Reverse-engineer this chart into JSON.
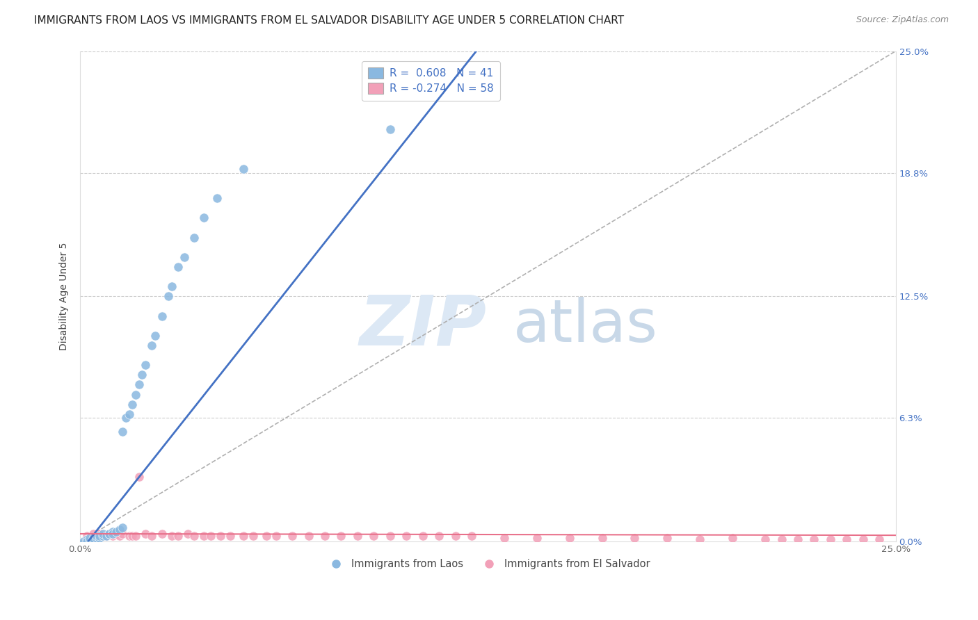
{
  "title": "IMMIGRANTS FROM LAOS VS IMMIGRANTS FROM EL SALVADOR DISABILITY AGE UNDER 5 CORRELATION CHART",
  "source": "Source: ZipAtlas.com",
  "ylabel": "Disability Age Under 5",
  "xlim": [
    0.0,
    0.25
  ],
  "ylim": [
    0.0,
    0.25
  ],
  "ytick_vals": [
    0.0,
    0.063,
    0.125,
    0.188,
    0.25
  ],
  "ytick_labels": [
    "0.0%",
    "6.3%",
    "12.5%",
    "18.8%",
    "25.0%"
  ],
  "grid_color": "#cccccc",
  "blue_color": "#8ab8e0",
  "pink_color": "#f2a0b8",
  "blue_line_color": "#4472c4",
  "pink_line_color": "#e8708a",
  "diagonal_color": "#b0b0b0",
  "watermark_color": "#dce8f5",
  "legend_R_blue": "R =  0.608",
  "legend_N_blue": "N = 41",
  "legend_R_pink": "R = -0.274",
  "legend_N_pink": "N = 58",
  "label_laos": "Immigrants from Laos",
  "label_salvador": "Immigrants from El Salvador",
  "blue_x": [
    0.001,
    0.002,
    0.002,
    0.003,
    0.003,
    0.004,
    0.004,
    0.005,
    0.005,
    0.006,
    0.006,
    0.007,
    0.007,
    0.008,
    0.009,
    0.009,
    0.01,
    0.01,
    0.011,
    0.012,
    0.013,
    0.013,
    0.014,
    0.015,
    0.016,
    0.017,
    0.018,
    0.019,
    0.02,
    0.022,
    0.023,
    0.025,
    0.027,
    0.028,
    0.03,
    0.032,
    0.035,
    0.038,
    0.042,
    0.05,
    0.095
  ],
  "blue_y": [
    0.0,
    0.001,
    0.0,
    0.001,
    0.002,
    0.001,
    0.002,
    0.002,
    0.003,
    0.002,
    0.003,
    0.003,
    0.004,
    0.003,
    0.004,
    0.004,
    0.005,
    0.004,
    0.005,
    0.006,
    0.007,
    0.056,
    0.063,
    0.065,
    0.07,
    0.075,
    0.08,
    0.085,
    0.09,
    0.1,
    0.105,
    0.115,
    0.125,
    0.13,
    0.14,
    0.145,
    0.155,
    0.165,
    0.175,
    0.19,
    0.21
  ],
  "pink_x": [
    0.002,
    0.004,
    0.005,
    0.006,
    0.007,
    0.008,
    0.009,
    0.01,
    0.011,
    0.012,
    0.013,
    0.015,
    0.016,
    0.017,
    0.018,
    0.02,
    0.022,
    0.025,
    0.028,
    0.03,
    0.033,
    0.035,
    0.038,
    0.04,
    0.043,
    0.046,
    0.05,
    0.053,
    0.057,
    0.06,
    0.065,
    0.07,
    0.075,
    0.08,
    0.085,
    0.09,
    0.095,
    0.1,
    0.105,
    0.11,
    0.115,
    0.12,
    0.13,
    0.14,
    0.15,
    0.16,
    0.17,
    0.18,
    0.19,
    0.2,
    0.21,
    0.215,
    0.22,
    0.225,
    0.23,
    0.235,
    0.24,
    0.245
  ],
  "pink_y": [
    0.003,
    0.004,
    0.003,
    0.004,
    0.003,
    0.003,
    0.004,
    0.003,
    0.004,
    0.003,
    0.004,
    0.003,
    0.003,
    0.003,
    0.033,
    0.004,
    0.003,
    0.004,
    0.003,
    0.003,
    0.004,
    0.003,
    0.003,
    0.003,
    0.003,
    0.003,
    0.003,
    0.003,
    0.003,
    0.003,
    0.003,
    0.003,
    0.003,
    0.003,
    0.003,
    0.003,
    0.003,
    0.003,
    0.003,
    0.003,
    0.003,
    0.003,
    0.002,
    0.002,
    0.002,
    0.002,
    0.002,
    0.002,
    0.001,
    0.002,
    0.001,
    0.001,
    0.001,
    0.001,
    0.001,
    0.001,
    0.001,
    0.001
  ],
  "title_fontsize": 11,
  "axis_label_fontsize": 10,
  "tick_fontsize": 9.5,
  "legend_fontsize": 11
}
